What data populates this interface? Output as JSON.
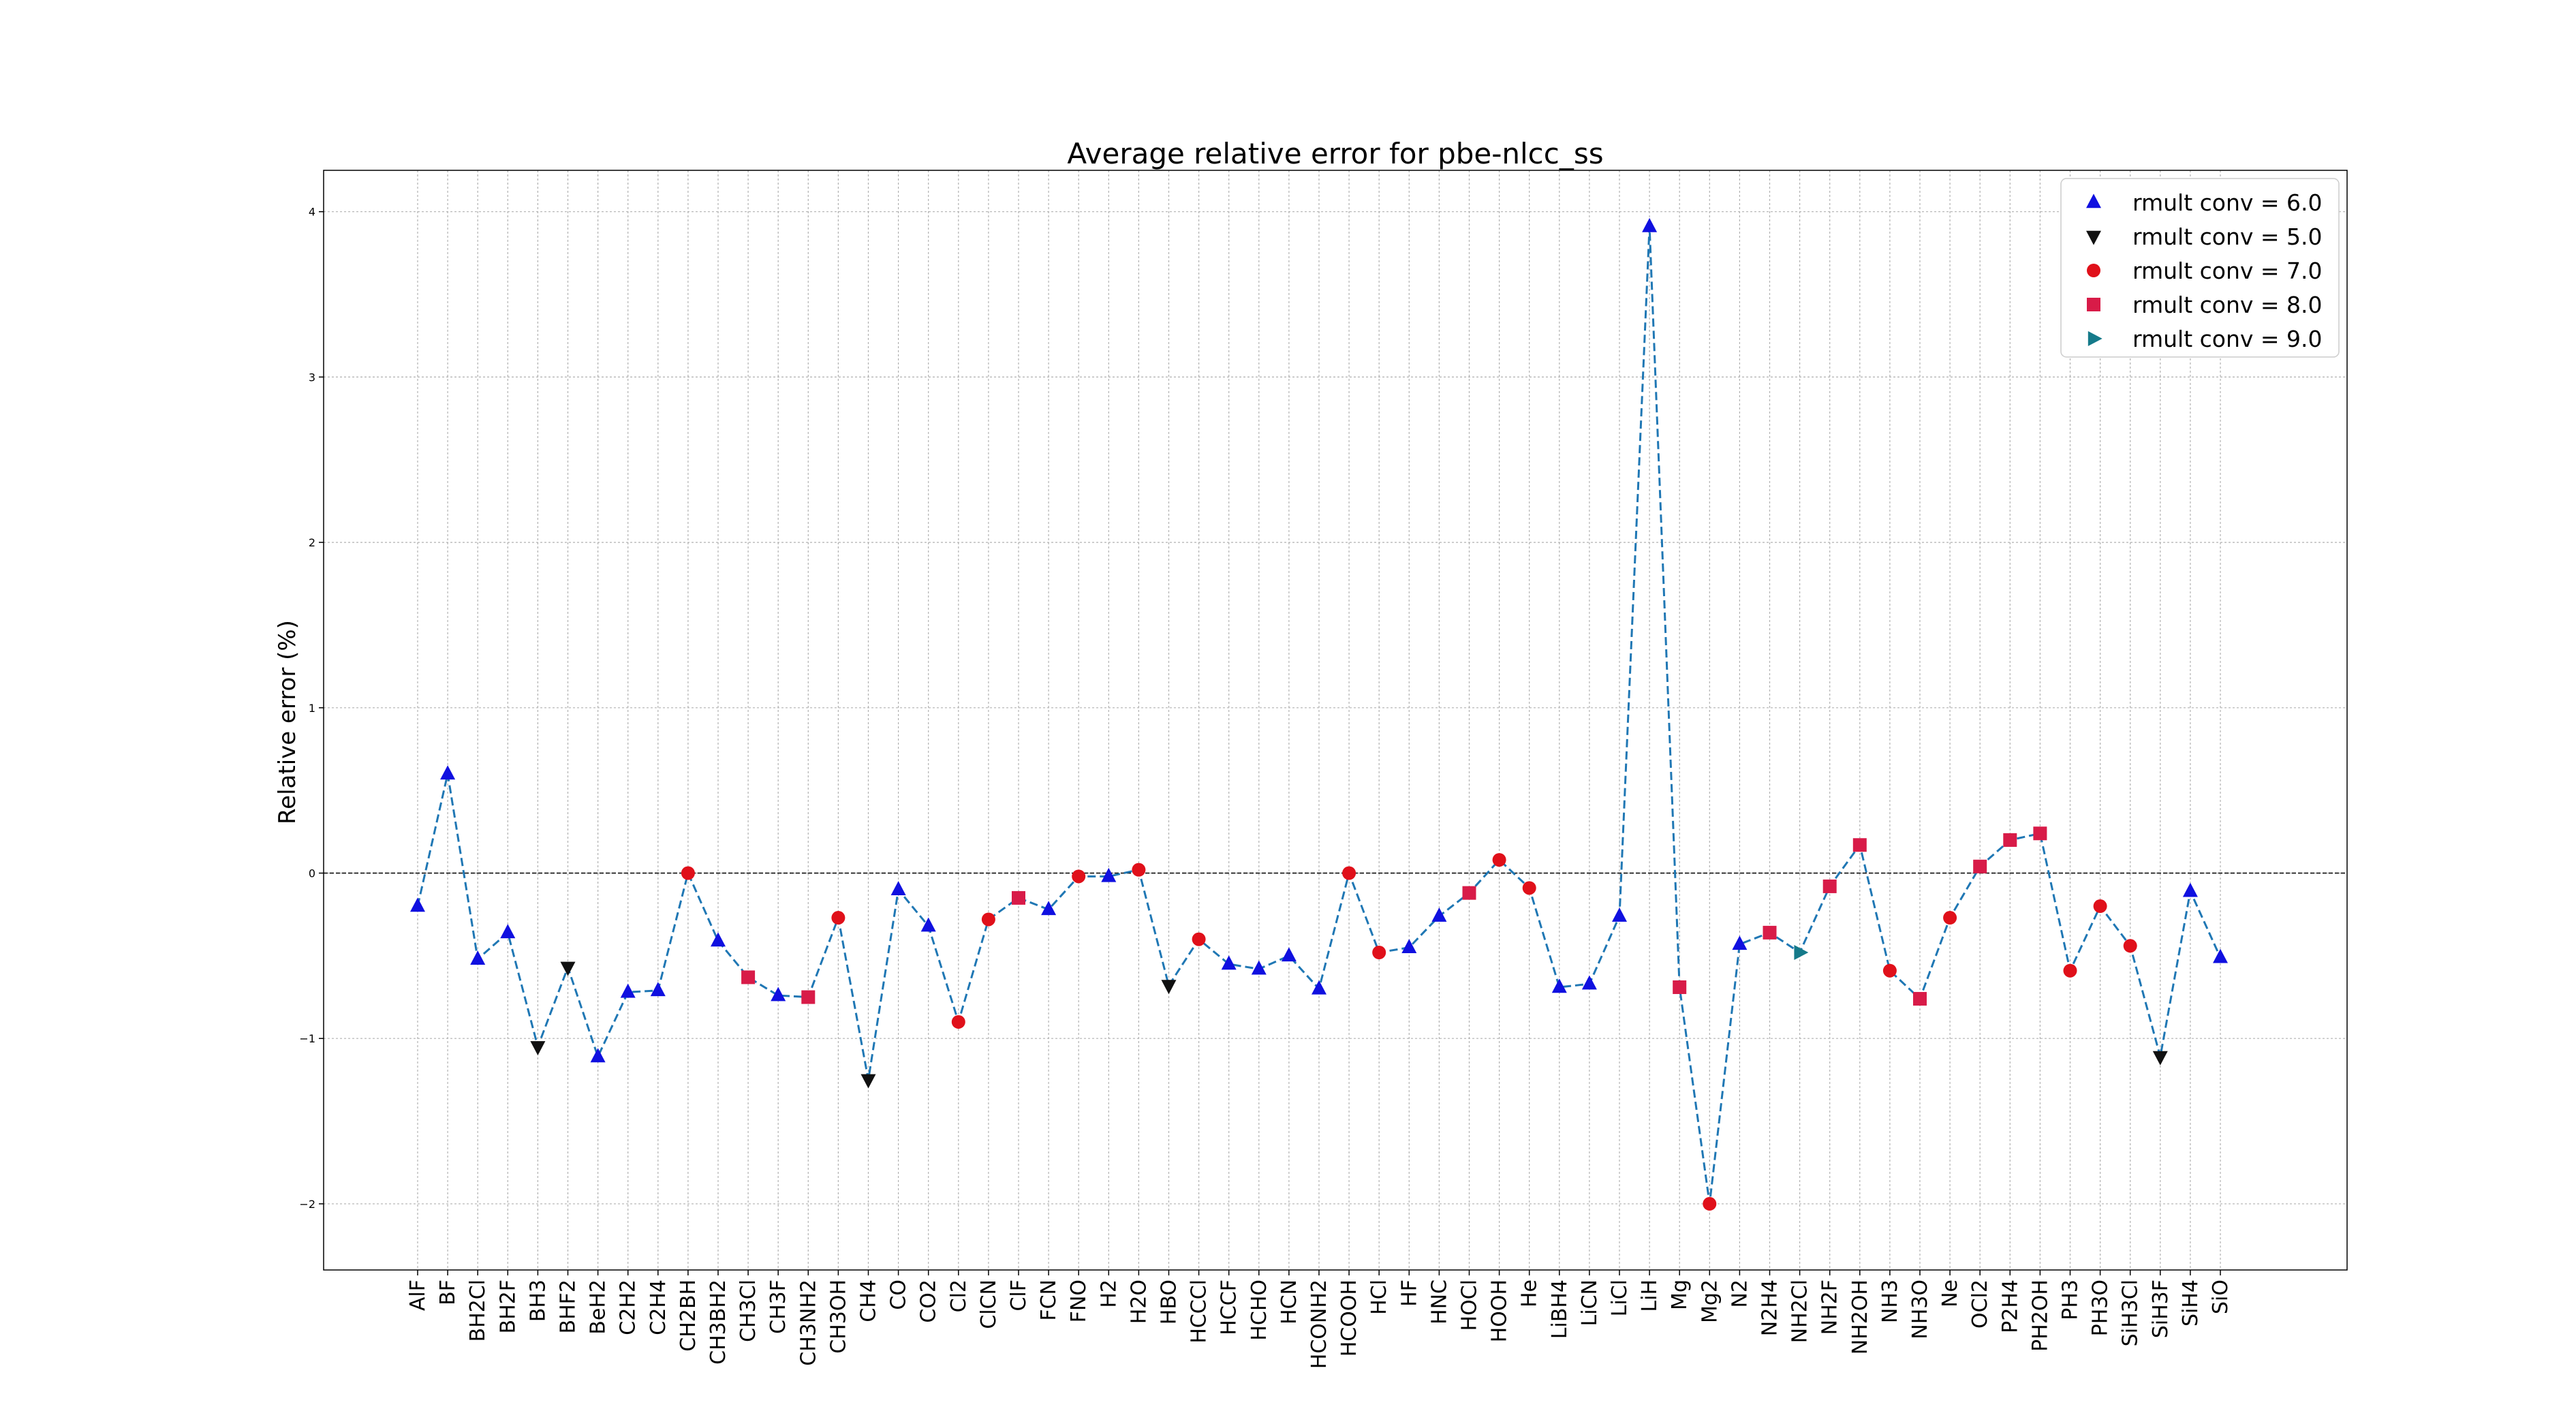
{
  "chart_data": {
    "type": "line",
    "title": "Average relative error for pbe-nlcc_ss",
    "xlabel": "",
    "ylabel": "Relative error (%)",
    "ylim": [
      -2.4,
      4.25
    ],
    "yticks": [
      -2,
      -1,
      0,
      1,
      2,
      3,
      4
    ],
    "grid": true,
    "zero_line": true,
    "legend_position": "top-right",
    "line_color": "#1f77b4",
    "legend": [
      {
        "label": "rmult conv = 6.0",
        "marker": "triangle-up",
        "color": "#1010e0"
      },
      {
        "label": "rmult conv = 5.0",
        "marker": "triangle-down",
        "color": "#111111"
      },
      {
        "label": "rmult conv = 7.0",
        "marker": "circle",
        "color": "#e0101a"
      },
      {
        "label": "rmult conv = 8.0",
        "marker": "square",
        "color": "#d81b48"
      },
      {
        "label": "rmult conv = 9.0",
        "marker": "triangle-right",
        "color": "#157a8a"
      }
    ],
    "categories": [
      "AlF",
      "BF",
      "BH2Cl",
      "BH2F",
      "BH3",
      "BHF2",
      "BeH2",
      "C2H2",
      "C2H4",
      "CH2BH",
      "CH3BH2",
      "CH3Cl",
      "CH3F",
      "CH3NH2",
      "CH3OH",
      "CH4",
      "CO",
      "CO2",
      "Cl2",
      "ClCN",
      "ClF",
      "FCN",
      "FNO",
      "H2",
      "H2O",
      "HBO",
      "HCCCl",
      "HCCF",
      "HCHO",
      "HCN",
      "HCONH2",
      "HCOOH",
      "HCl",
      "HF",
      "HNC",
      "HOCl",
      "HOOH",
      "He",
      "LiBH4",
      "LiCN",
      "LiCl",
      "LiH",
      "Mg",
      "Mg2",
      "N2",
      "N2H4",
      "NH2Cl",
      "NH2F",
      "NH2OH",
      "NH3",
      "NH3O",
      "Ne",
      "OCl2",
      "P2H4",
      "PH2OH",
      "PH3",
      "PH3O",
      "SiH3Cl",
      "SiH3F",
      "SiH4",
      "SiO"
    ],
    "values": [
      -0.2,
      0.6,
      -0.52,
      -0.36,
      -1.05,
      -0.57,
      -1.11,
      -0.72,
      -0.71,
      0.0,
      -0.41,
      -0.63,
      -0.74,
      -0.75,
      -0.27,
      -1.25,
      -0.1,
      -0.32,
      -0.9,
      -0.28,
      -0.15,
      -0.22,
      -0.02,
      -0.02,
      0.02,
      -0.68,
      -0.4,
      -0.55,
      -0.58,
      -0.5,
      -0.7,
      0.0,
      -0.48,
      -0.45,
      -0.26,
      -0.12,
      0.08,
      -0.09,
      -0.69,
      -0.67,
      -0.26,
      3.91,
      -0.69,
      -2.0,
      -0.43,
      -0.36,
      -0.48,
      -0.08,
      0.17,
      -0.59,
      -0.76,
      -0.27,
      0.04,
      0.2,
      0.24,
      -0.59,
      -0.2,
      -0.44,
      -1.11,
      -0.11,
      -0.51
    ],
    "rmult_conv": [
      6.0,
      6.0,
      6.0,
      6.0,
      5.0,
      5.0,
      6.0,
      6.0,
      6.0,
      7.0,
      6.0,
      8.0,
      6.0,
      8.0,
      7.0,
      5.0,
      6.0,
      6.0,
      7.0,
      7.0,
      8.0,
      6.0,
      7.0,
      6.0,
      7.0,
      5.0,
      7.0,
      6.0,
      6.0,
      6.0,
      6.0,
      7.0,
      7.0,
      6.0,
      6.0,
      8.0,
      7.0,
      7.0,
      6.0,
      6.0,
      6.0,
      6.0,
      8.0,
      7.0,
      6.0,
      8.0,
      9.0,
      8.0,
      8.0,
      7.0,
      8.0,
      7.0,
      8.0,
      8.0,
      8.0,
      7.0,
      7.0,
      7.0,
      5.0,
      6.0,
      6.0
    ]
  }
}
